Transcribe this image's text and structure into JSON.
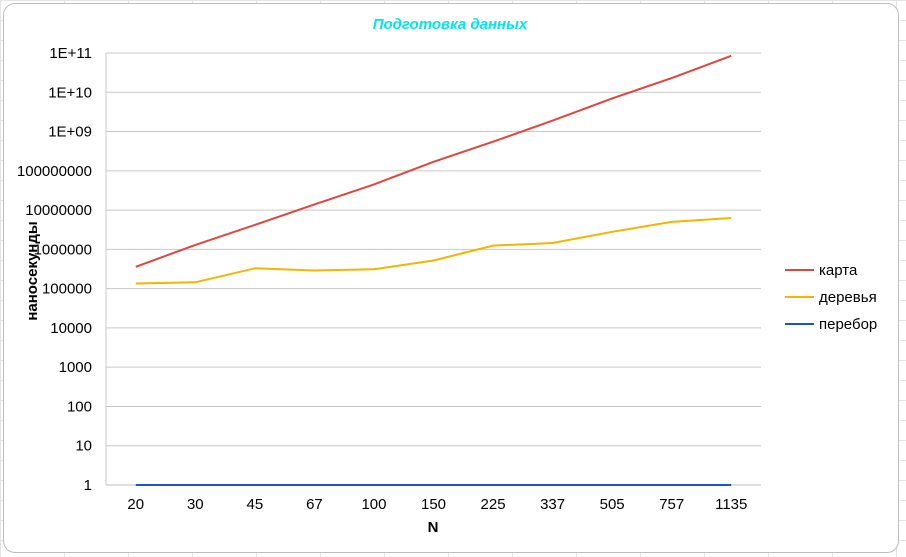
{
  "chart_data": {
    "type": "line",
    "title": "Подготовка данных",
    "title_color": "#00e5ee",
    "xlabel": "N",
    "ylabel": "наносекунды",
    "y_scale": "log",
    "ylim": [
      1,
      100000000000
    ],
    "y_ticks": [
      {
        "value": 1,
        "label": "1"
      },
      {
        "value": 10,
        "label": "10"
      },
      {
        "value": 100,
        "label": "100"
      },
      {
        "value": 1000,
        "label": "1000"
      },
      {
        "value": 10000,
        "label": "10000"
      },
      {
        "value": 100000,
        "label": "100000"
      },
      {
        "value": 1000000,
        "label": "1000000"
      },
      {
        "value": 10000000,
        "label": "10000000"
      },
      {
        "value": 100000000,
        "label": "100000000"
      },
      {
        "value": 1000000000,
        "label": "1E+09"
      },
      {
        "value": 10000000000,
        "label": "1E+10"
      },
      {
        "value": 100000000000,
        "label": "1E+11"
      }
    ],
    "categories": [
      "20",
      "30",
      "45",
      "67",
      "100",
      "150",
      "225",
      "337",
      "505",
      "757",
      "1135"
    ],
    "grid": true,
    "legend_position": "right",
    "series": [
      {
        "name": "карта",
        "color": "#e2453c",
        "values": [
          360000,
          1300000,
          4200000,
          14000000,
          45000000,
          170000000,
          550000000,
          1900000000,
          7000000000,
          23000000000,
          85000000000
        ]
      },
      {
        "name": "деревья",
        "color": "#f4b400",
        "values": [
          135000,
          145000,
          330000,
          290000,
          310000,
          520000,
          1250000,
          1450000,
          2800000,
          5000000,
          6300000
        ]
      },
      {
        "name": "перебор",
        "color": "#1a56c4",
        "values": [
          1,
          1,
          1,
          1,
          1,
          1,
          1,
          1,
          1,
          1,
          1
        ]
      }
    ]
  }
}
